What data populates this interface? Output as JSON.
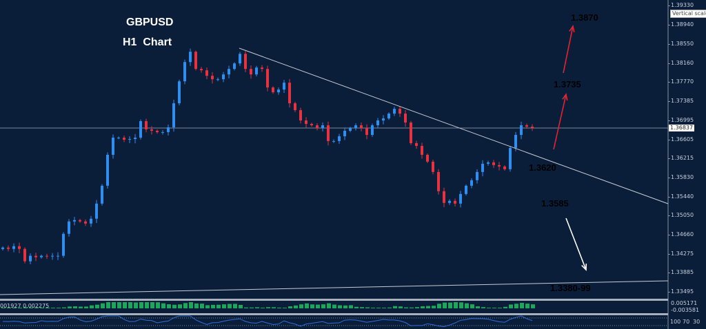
{
  "chart_data": {
    "type": "candlestick",
    "title": "GBPUSD",
    "subtitle": "H1  Chart",
    "symbol": "GBPUSD",
    "timeframe": "H1",
    "y_ticks": [
      "1.39330",
      "1.38940",
      "1.38550",
      "1.38160",
      "1.37770",
      "1.37385",
      "1.36995",
      "1.36605",
      "1.36215",
      "1.35830",
      "1.35440",
      "1.35050",
      "1.34660",
      "1.34275",
      "1.33885",
      "1.33495"
    ],
    "current_price": "1.36837",
    "closes": [
      1.34401,
      1.34373,
      1.34429,
      1.34373,
      1.34121,
      1.34233,
      1.34205,
      1.34233,
      1.34219,
      1.34233,
      1.34233,
      1.34681,
      1.34933,
      1.34961,
      1.34933,
      1.34891,
      1.34989,
      1.35297,
      1.35661,
      1.36291,
      1.36641,
      1.36641,
      1.36599,
      1.36613,
      1.36641,
      1.36977,
      1.36809,
      1.36781,
      1.36753,
      1.36753,
      1.36851,
      1.37341,
      1.37789,
      1.38181,
      1.38391,
      1.38041,
      1.38013,
      1.37901,
      1.37831,
      1.37831,
      1.37929,
      1.38041,
      1.38153,
      1.38349,
      1.38041,
      1.37929,
      1.38069,
      1.38041,
      1.37663,
      1.37565,
      1.37621,
      1.37761,
      1.37341,
      1.37201,
      1.36991,
      1.36921,
      1.36893,
      1.36837,
      1.36893,
      1.36571,
      1.36571,
      1.36669,
      1.36781,
      1.36837,
      1.36893,
      1.36837,
      1.36697,
      1.36893,
      1.36991,
      1.37033,
      1.37131,
      1.37229,
      1.37131,
      1.36949,
      1.36529,
      1.36473,
      1.36291,
      1.36151,
      1.35941,
      1.35549,
      1.35311,
      1.35353,
      1.35297,
      1.35493,
      1.35661,
      1.35773,
      1.35941,
      1.36109,
      1.36137,
      1.36081,
      1.36053,
      1.35997,
      1.36431,
      1.36697,
      1.36893,
      1.36865,
      1.36837
    ],
    "colors": {
      "up": "#2f8ef2",
      "down": "#e8323f",
      "background": "#0a1e3a",
      "trendline": "#c8ccd4"
    },
    "annotations": [
      {
        "text": "1.3870",
        "color": "#2f8ef2"
      },
      {
        "text": "1.3735",
        "color": "#2f8ef2"
      },
      {
        "text": "1.3620",
        "color": "#ffffff"
      },
      {
        "text": "1.3585",
        "color": "#ffff00"
      },
      {
        "text": "1.3380-99",
        "color": "#ffffff"
      }
    ],
    "macd": {
      "values_text": "001927 0.002275",
      "scale": [
        "0.005171",
        "-0.003581"
      ],
      "color": "#22c060"
    },
    "rsi": {
      "levels": [
        "100",
        "70",
        "30"
      ],
      "color": "#2f6fd8"
    },
    "tooltip": "Vertical scale"
  }
}
